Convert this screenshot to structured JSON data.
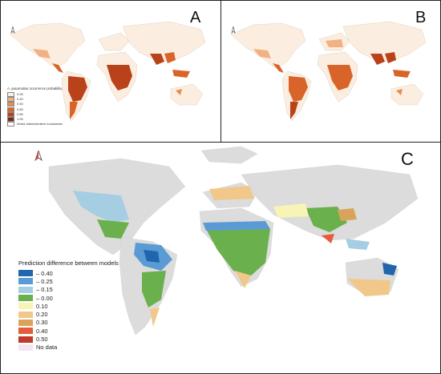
{
  "panels": {
    "a": {
      "label": "A"
    },
    "b": {
      "label": "B"
    },
    "c": {
      "label": "C"
    }
  },
  "legend_a": {
    "title": "A. yasumatsui occurrence probability",
    "items": [
      {
        "label": "0.00",
        "color": "#fbeee0"
      },
      {
        "label": "0.40",
        "color": "#f2b183"
      },
      {
        "label": "0.50",
        "color": "#e88d4f"
      },
      {
        "label": "0.60",
        "color": "#d9642a"
      },
      {
        "label": "0.80",
        "color": "#b9421b"
      },
      {
        "label": "1.00",
        "color": "#7a2a12"
      }
    ],
    "boundary_label": "World administrative boundaries"
  },
  "legend_c": {
    "title": "Prediction difference between models",
    "items": [
      {
        "label": "– 0.40",
        "color": "#2166ac"
      },
      {
        "label": "– 0.25",
        "color": "#5b9bd5"
      },
      {
        "label": "– 0.15",
        "color": "#a6cee3"
      },
      {
        "label": "– 0.00",
        "color": "#6ab04c"
      },
      {
        "label": "0.10",
        "color": "#f7f4b5"
      },
      {
        "label": "0.20",
        "color": "#f1c88a"
      },
      {
        "label": "0.30",
        "color": "#d9a45a"
      },
      {
        "label": "0.40",
        "color": "#e85a3c"
      },
      {
        "label": "0.50",
        "color": "#c0392b"
      },
      {
        "label": "No data",
        "color": "#f3e6f2"
      }
    ]
  },
  "colors": {
    "land_a": "#fbeee0",
    "land_c": "#dcdcdc",
    "high": "#b9421b",
    "mid": "#e88d4f",
    "green": "#6ab04c",
    "blue": "#5b9bd5",
    "dark_blue": "#2166ac"
  },
  "icons": [
    "compass-rose-icon"
  ]
}
